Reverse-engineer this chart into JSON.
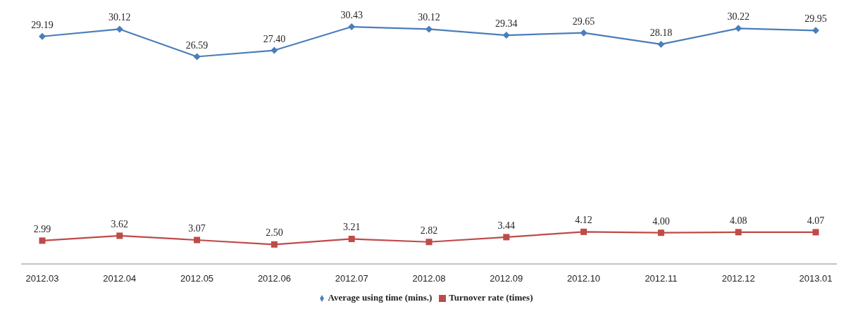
{
  "chart_data": {
    "type": "line",
    "categories": [
      "2012.03",
      "2012.04",
      "2012.05",
      "2012.06",
      "2012.07",
      "2012.08",
      "2012.09",
      "2012.10",
      "2012.11",
      "2012.12",
      "2013.01"
    ],
    "series": [
      {
        "name": "Average using time (mins.)",
        "color": "#4a7ebb",
        "marker": "diamond",
        "values": [
          29.19,
          30.12,
          26.59,
          27.4,
          30.43,
          30.12,
          29.34,
          29.65,
          28.18,
          30.22,
          29.95
        ],
        "value_labels": [
          "29.19",
          "30.12",
          "26.59",
          "27.40",
          "30.43",
          "30.12",
          "29.34",
          "29.65",
          "28.18",
          "30.22",
          "29.95"
        ]
      },
      {
        "name": "Turnover rate (times)",
        "color": "#be4b48",
        "marker": "square",
        "values": [
          2.99,
          3.62,
          3.07,
          2.5,
          3.21,
          2.82,
          3.44,
          4.12,
          4.0,
          4.08,
          4.07
        ],
        "value_labels": [
          "2.99",
          "3.62",
          "3.07",
          "2.50",
          "3.21",
          "2.82",
          "3.44",
          "4.12",
          "4.00",
          "4.08",
          "4.07"
        ]
      }
    ],
    "legend": "bottom"
  }
}
